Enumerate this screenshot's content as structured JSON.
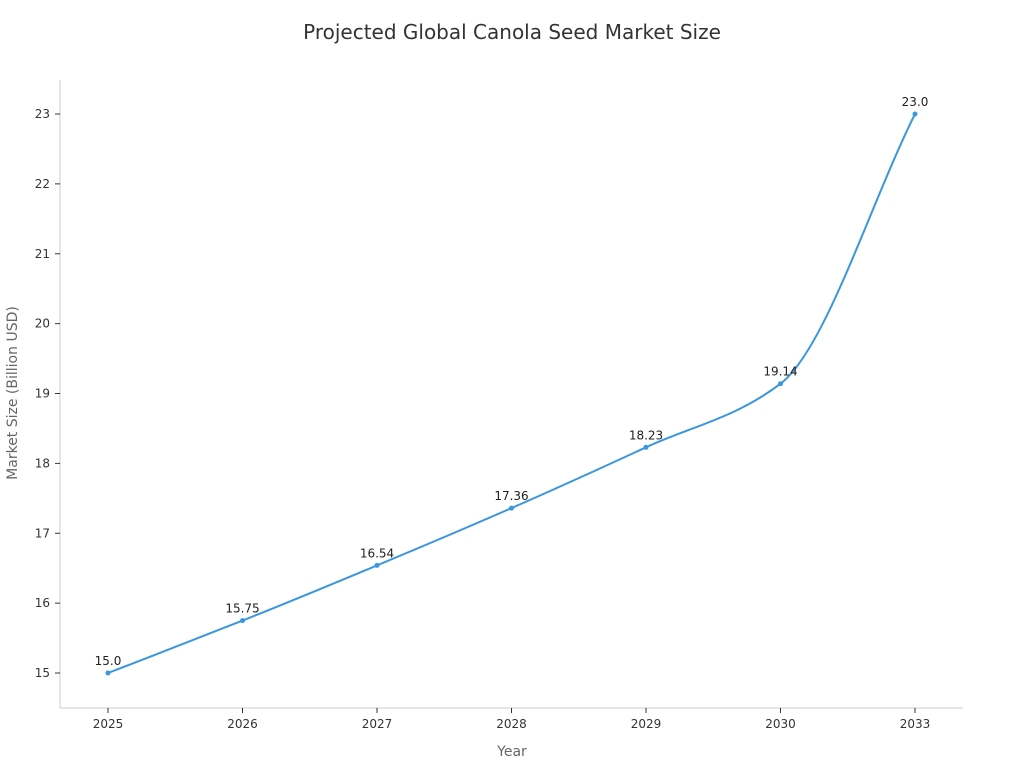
{
  "chart_data": {
    "type": "line",
    "title": "Projected Global Canola Seed Market Size",
    "xlabel": "Year",
    "ylabel": "Market Size (Billion USD)",
    "categories": [
      "2025",
      "2026",
      "2027",
      "2028",
      "2029",
      "2030",
      "2033"
    ],
    "values": [
      15.0,
      15.75,
      16.54,
      17.36,
      18.23,
      19.14,
      23.0
    ],
    "data_labels": [
      "15.0",
      "15.75",
      "16.54",
      "17.36",
      "18.23",
      "19.14",
      "23.0"
    ],
    "yticks": [
      "15",
      "16",
      "17",
      "18",
      "19",
      "20",
      "21",
      "22",
      "23"
    ],
    "ylim": [
      14.5,
      23.5
    ],
    "grid": false,
    "colors": {
      "line": "#3a96dd",
      "axis": "#cccccc",
      "tick": "#333333"
    }
  }
}
